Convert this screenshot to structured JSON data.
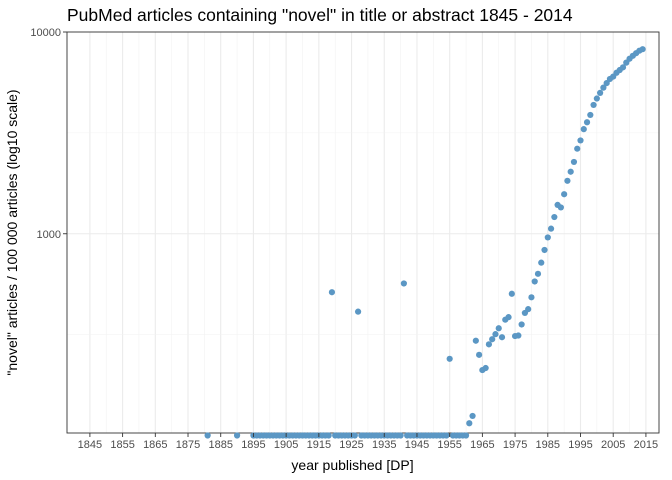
{
  "chart_data": {
    "type": "scatter",
    "title": "PubMed articles containing \"novel\" in title or abstract 1845 - 2014",
    "xlabel": "year published [DP]",
    "ylabel": "\"novel\" articles / 100 000 articles (log10 scale)",
    "x_ticks": [
      1845,
      1855,
      1865,
      1875,
      1885,
      1895,
      1905,
      1915,
      1925,
      1935,
      1945,
      1955,
      1965,
      1975,
      1985,
      1995,
      2005,
      2015
    ],
    "y_scale": "log10",
    "y_ticks": [
      1000,
      10000
    ],
    "y_tick_labels": [
      "1000",
      "10000"
    ],
    "xlim": [
      1838,
      2019
    ],
    "ylim": [
      100,
      10000
    ],
    "grid": true,
    "point_color": "#5b97c4",
    "points": [
      [
        1881,
        100
      ],
      [
        1890,
        100
      ],
      [
        1895,
        100
      ],
      [
        1896,
        100
      ],
      [
        1897,
        100
      ],
      [
        1898,
        100
      ],
      [
        1899,
        100
      ],
      [
        1900,
        100
      ],
      [
        1901,
        100
      ],
      [
        1902,
        100
      ],
      [
        1903,
        100
      ],
      [
        1904,
        100
      ],
      [
        1905,
        100
      ],
      [
        1906,
        100
      ],
      [
        1907,
        100
      ],
      [
        1908,
        100
      ],
      [
        1909,
        100
      ],
      [
        1910,
        100
      ],
      [
        1911,
        100
      ],
      [
        1912,
        100
      ],
      [
        1913,
        100
      ],
      [
        1914,
        100
      ],
      [
        1915,
        100
      ],
      [
        1916,
        100
      ],
      [
        1917,
        100
      ],
      [
        1918,
        100
      ],
      [
        1919,
        513
      ],
      [
        1920,
        100
      ],
      [
        1921,
        100
      ],
      [
        1922,
        100
      ],
      [
        1923,
        100
      ],
      [
        1924,
        100
      ],
      [
        1925,
        100
      ],
      [
        1926,
        100
      ],
      [
        1927,
        411
      ],
      [
        1928,
        100
      ],
      [
        1929,
        100
      ],
      [
        1930,
        100
      ],
      [
        1931,
        100
      ],
      [
        1932,
        100
      ],
      [
        1933,
        100
      ],
      [
        1934,
        100
      ],
      [
        1935,
        100
      ],
      [
        1936,
        100
      ],
      [
        1937,
        100
      ],
      [
        1938,
        100
      ],
      [
        1939,
        100
      ],
      [
        1940,
        100
      ],
      [
        1941,
        567
      ],
      [
        1942,
        100
      ],
      [
        1943,
        100
      ],
      [
        1944,
        100
      ],
      [
        1945,
        100
      ],
      [
        1946,
        100
      ],
      [
        1947,
        100
      ],
      [
        1948,
        100
      ],
      [
        1949,
        100
      ],
      [
        1950,
        100
      ],
      [
        1951,
        100
      ],
      [
        1952,
        100
      ],
      [
        1953,
        100
      ],
      [
        1954,
        100
      ],
      [
        1955,
        240
      ],
      [
        1956,
        100
      ],
      [
        1957,
        100
      ],
      [
        1958,
        100
      ],
      [
        1959,
        100
      ],
      [
        1960,
        100
      ],
      [
        1961,
        115
      ],
      [
        1962,
        125
      ],
      [
        1963,
        295
      ],
      [
        1964,
        251
      ],
      [
        1965,
        211
      ],
      [
        1966,
        216
      ],
      [
        1967,
        283
      ],
      [
        1968,
        300
      ],
      [
        1969,
        318
      ],
      [
        1970,
        340
      ],
      [
        1971,
        307
      ],
      [
        1972,
        375
      ],
      [
        1973,
        386
      ],
      [
        1974,
        504
      ],
      [
        1975,
        311
      ],
      [
        1976,
        313
      ],
      [
        1977,
        355
      ],
      [
        1978,
        405
      ],
      [
        1979,
        423
      ],
      [
        1980,
        484
      ],
      [
        1981,
        580
      ],
      [
        1982,
        633
      ],
      [
        1983,
        719
      ],
      [
        1984,
        831
      ],
      [
        1985,
        959
      ],
      [
        1986,
        1060
      ],
      [
        1987,
        1210
      ],
      [
        1988,
        1390
      ],
      [
        1989,
        1350
      ],
      [
        1990,
        1570
      ],
      [
        1991,
        1830
      ],
      [
        1992,
        2030
      ],
      [
        1993,
        2270
      ],
      [
        1994,
        2640
      ],
      [
        1995,
        2900
      ],
      [
        1996,
        3300
      ],
      [
        1997,
        3570
      ],
      [
        1998,
        3880
      ],
      [
        1999,
        4350
      ],
      [
        2000,
        4680
      ],
      [
        2001,
        4990
      ],
      [
        2002,
        5300
      ],
      [
        2003,
        5580
      ],
      [
        2004,
        5850
      ],
      [
        2005,
        6010
      ],
      [
        2006,
        6280
      ],
      [
        2007,
        6480
      ],
      [
        2008,
        6680
      ],
      [
        2009,
        7050
      ],
      [
        2010,
        7370
      ],
      [
        2011,
        7620
      ],
      [
        2012,
        7850
      ],
      [
        2013,
        8080
      ],
      [
        2014,
        8220
      ]
    ]
  }
}
